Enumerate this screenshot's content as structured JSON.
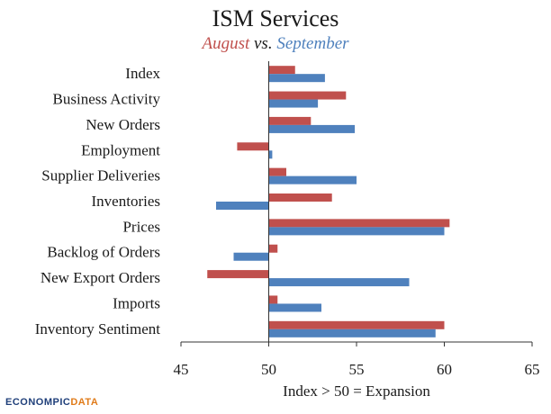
{
  "chart_data": {
    "type": "bar",
    "orientation": "horizontal",
    "title": "ISM Services",
    "subtitle": {
      "part1": "August",
      "mid": " vs. ",
      "part2": "September"
    },
    "categories": [
      "Index",
      "Business Activity",
      "New Orders",
      "Employment",
      "Supplier Deliveries",
      "Inventories",
      "Prices",
      "Backlog of Orders",
      "New Export Orders",
      "Imports",
      "Inventory Sentiment"
    ],
    "series": [
      {
        "name": "August",
        "color": "#c0504d",
        "values": [
          51.5,
          54.4,
          52.4,
          48.2,
          51.0,
          53.6,
          60.3,
          50.5,
          46.5,
          50.5,
          60.0
        ]
      },
      {
        "name": "September",
        "color": "#4f81bd",
        "values": [
          53.2,
          52.8,
          54.9,
          50.2,
          55.0,
          47.0,
          60.0,
          48.0,
          58.0,
          53.0,
          59.5
        ]
      }
    ],
    "xlabel": "Index > 50 = Expansion",
    "xlim": [
      45,
      65
    ],
    "xticks": [
      45,
      50,
      55,
      60,
      65
    ],
    "baseline": 50
  },
  "branding": {
    "part1": "ECONOMPIC",
    "part2": "DATA"
  }
}
